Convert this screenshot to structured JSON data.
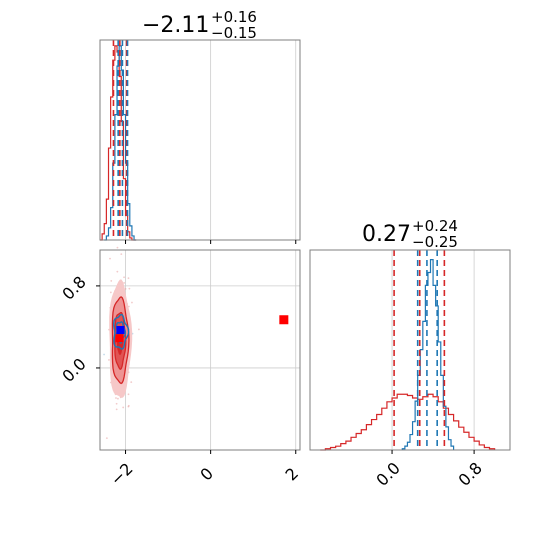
{
  "chart_data": {
    "type": "corner",
    "parameters": 2,
    "titles": [
      {
        "value": "−2.11",
        "plus": "+0.16",
        "minus": "−0.15"
      },
      {
        "value": "0.27",
        "plus": "+0.24",
        "minus": "−0.25"
      }
    ],
    "x_param0": {
      "lim": [
        -2.6,
        2.1
      ],
      "ticks": [
        -2,
        0,
        2
      ],
      "tick_labels": [
        "−2",
        "0",
        "2"
      ]
    },
    "param1": {
      "lim": [
        -0.8,
        1.15
      ],
      "ticks": [
        0.0,
        0.8
      ],
      "tick_labels": [
        "0.0",
        "0.8"
      ]
    },
    "series": [
      {
        "name": "",
        "color": "#d62728",
        "hist_param0": {
          "bins": [
            -2.6,
            -2.55,
            -2.5,
            -2.45,
            -2.4,
            -2.35,
            -2.3,
            -2.25,
            -2.2,
            -2.15,
            -2.1,
            -2.05,
            -2.0,
            -1.95,
            -1.9,
            -1.85,
            -1.8,
            -1.75
          ],
          "counts": [
            0,
            3,
            8,
            20,
            45,
            70,
            88,
            95,
            92,
            80,
            58,
            30,
            12,
            4,
            1,
            0,
            0
          ]
        },
        "quantiles_param0": [
          -2.26,
          -2.11,
          -1.95
        ],
        "hist_param1": {
          "bins": [
            -0.7,
            -0.65,
            -0.6,
            -0.55,
            -0.5,
            -0.45,
            -0.4,
            -0.35,
            -0.3,
            -0.25,
            -0.2,
            -0.15,
            -0.1,
            -0.05,
            0.0,
            0.05,
            0.1,
            0.15,
            0.2,
            0.25,
            0.3,
            0.35,
            0.4,
            0.45,
            0.5,
            0.55,
            0.6,
            0.65,
            0.7,
            0.75,
            0.8,
            0.85,
            0.9,
            0.95,
            1.0
          ],
          "counts": [
            0,
            1,
            2,
            3,
            5,
            7,
            10,
            13,
            16,
            20,
            24,
            28,
            33,
            38,
            41,
            44,
            44,
            43,
            41,
            40,
            42,
            44,
            42,
            38,
            33,
            28,
            23,
            18,
            14,
            10,
            7,
            4,
            2,
            1
          ]
        },
        "quantiles_param1": [
          0.02,
          0.27,
          0.51
        ],
        "density_center": [
          -2.13,
          0.27
        ],
        "density_spread": [
          0.12,
          0.26
        ],
        "marker": [
          1.72,
          0.47
        ]
      },
      {
        "name": "",
        "color": "#1f77b4",
        "hist_param0": {
          "bins": [
            -2.5,
            -2.45,
            -2.4,
            -2.35,
            -2.3,
            -2.25,
            -2.2,
            -2.15,
            -2.1,
            -2.05,
            -2.0,
            -1.95,
            -1.9,
            -1.85,
            -1.8,
            -1.75
          ],
          "counts": [
            0,
            2,
            6,
            16,
            38,
            62,
            86,
            96,
            84,
            62,
            38,
            18,
            7,
            2,
            0
          ]
        },
        "quantiles_param0": [
          -2.22,
          -2.12,
          -2.0
        ],
        "hist_param1": {
          "bins": [
            0.1,
            0.125,
            0.15,
            0.175,
            0.2,
            0.225,
            0.25,
            0.275,
            0.3,
            0.325,
            0.35,
            0.375,
            0.4,
            0.425,
            0.45,
            0.475,
            0.5,
            0.525,
            0.55,
            0.575,
            0.6
          ],
          "counts": [
            1,
            3,
            6,
            12,
            22,
            38,
            58,
            78,
            100,
            128,
            138,
            148,
            128,
            112,
            84,
            58,
            34,
            18,
            8,
            3
          ]
        },
        "quantiles_param1": [
          0.25,
          0.34,
          0.44
        ],
        "density_center": [
          -2.12,
          0.35
        ],
        "density_spread": [
          0.09,
          0.09
        ],
        "marker": [
          -2.12,
          0.37
        ]
      }
    ],
    "grid": true
  }
}
